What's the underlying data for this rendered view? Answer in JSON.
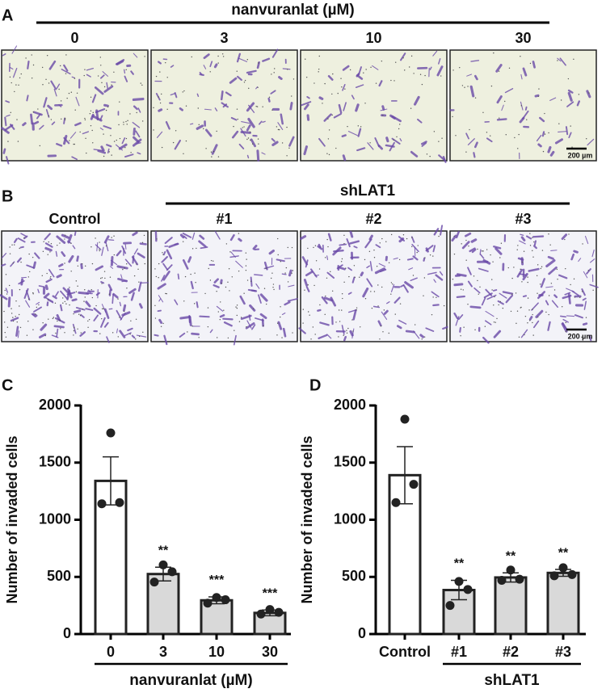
{
  "panels": [
    {
      "label": "A",
      "group_label": "nanvuranlat (µM)",
      "group_from": 0,
      "images": [
        "0",
        "3",
        "10",
        "30"
      ],
      "scale_bar": "200 µm"
    },
    {
      "label": "B",
      "group_label": "shLAT1",
      "group_from": 1,
      "images": [
        "Control",
        "#1",
        "#2",
        "#3"
      ],
      "scale_bar": "200 µm"
    }
  ],
  "chart_data": [
    {
      "type": "bar",
      "panel_label": "C",
      "ylabel": "Number of invaded cells",
      "xlabel": "nanvuranlat (µM)",
      "xlabel_from": 0,
      "categories": [
        "0",
        "3",
        "10",
        "30"
      ],
      "values": [
        1340,
        525,
        295,
        185
      ],
      "errors": [
        210,
        60,
        30,
        25
      ],
      "points": [
        [
          1760,
          1150,
          1140
        ],
        [
          605,
          545,
          455
        ],
        [
          320,
          300,
          270
        ],
        [
          215,
          190,
          175
        ]
      ],
      "annotations": [
        null,
        "**",
        "***",
        "***"
      ],
      "colors": [
        "#ffffff",
        "#d9d9d9",
        "#d9d9d9",
        "#d9d9d9"
      ],
      "ylim": [
        0,
        2000
      ],
      "yticks": [
        0,
        500,
        1000,
        1500,
        2000
      ]
    },
    {
      "type": "bar",
      "panel_label": "D",
      "ylabel": "Number of invaded cells",
      "xlabel": "shLAT1",
      "xlabel_from": 1,
      "categories": [
        "Control",
        "#1",
        "#2",
        "#3"
      ],
      "values": [
        1390,
        385,
        495,
        535
      ],
      "errors": [
        250,
        85,
        40,
        30
      ],
      "points": [
        [
          1880,
          1310,
          1150
        ],
        [
          460,
          390,
          250
        ],
        [
          560,
          480,
          470
        ],
        [
          580,
          520,
          510
        ]
      ],
      "annotations": [
        null,
        "**",
        "**",
        "**"
      ],
      "colors": [
        "#ffffff",
        "#d9d9d9",
        "#d9d9d9",
        "#d9d9d9"
      ],
      "ylim": [
        0,
        2000
      ],
      "yticks": [
        0,
        500,
        1000,
        1500,
        2000
      ]
    }
  ]
}
